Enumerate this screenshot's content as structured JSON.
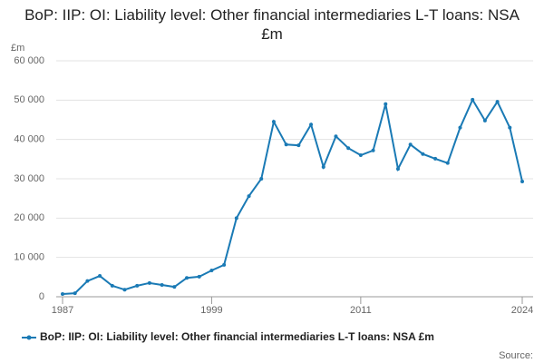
{
  "chart_data": {
    "type": "line",
    "title": "BoP: IIP: OI: Liability level: Other financial intermediaries L-T loans: NSA £m",
    "y_unit": "£m",
    "source": "Source:",
    "x": [
      1987,
      1988,
      1989,
      1990,
      1991,
      1992,
      1993,
      1994,
      1995,
      1996,
      1997,
      1998,
      1999,
      2000,
      2001,
      2002,
      2003,
      2004,
      2005,
      2006,
      2007,
      2008,
      2009,
      2010,
      2011,
      2012,
      2013,
      2014,
      2015,
      2016,
      2017,
      2018,
      2019,
      2020,
      2021,
      2022,
      2023,
      2024
    ],
    "series": [
      {
        "name": "BoP: IIP: OI: Liability level: Other financial intermediaries L-T loans: NSA £m",
        "color": "#1a7ab5",
        "values": [
          700,
          900,
          4000,
          5300,
          2800,
          1800,
          2800,
          3500,
          3000,
          2500,
          4800,
          5100,
          6700,
          8100,
          20000,
          25600,
          30000,
          44500,
          38700,
          38500,
          43800,
          33000,
          40800,
          37800,
          36000,
          37200,
          49000,
          32500,
          38700,
          36300,
          35100,
          34000,
          43000,
          50100,
          44800,
          49600,
          43000,
          29300
        ]
      }
    ],
    "xlim": [
      1987,
      2024
    ],
    "xticks": [
      1987,
      1999,
      2011,
      2024
    ],
    "ylim": [
      0,
      60000
    ],
    "yticks": [
      {
        "value": 0,
        "label": "0"
      },
      {
        "value": 10000,
        "label": "10 000"
      },
      {
        "value": 20000,
        "label": "20 000"
      },
      {
        "value": 30000,
        "label": "30 000"
      },
      {
        "value": 40000,
        "label": "40 000"
      },
      {
        "value": 50000,
        "label": "50 000"
      },
      {
        "value": 60000,
        "label": "60 000"
      }
    ],
    "grid": true
  }
}
